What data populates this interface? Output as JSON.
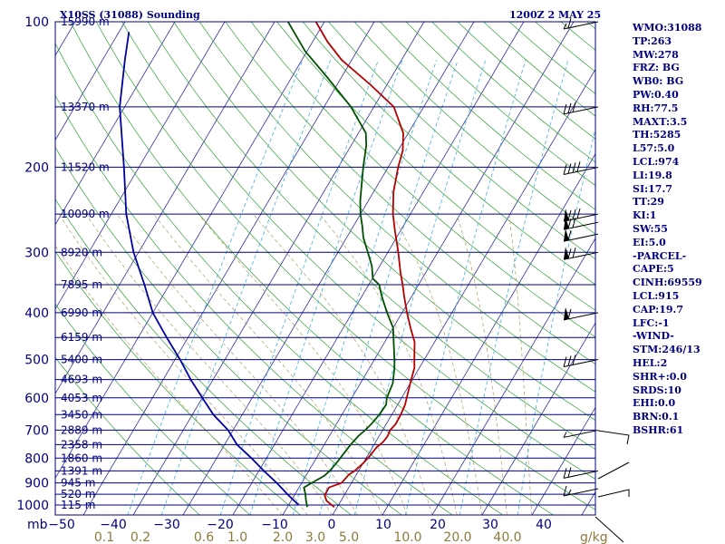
{
  "header": {
    "station_title": "X10SS (31088) Sounding",
    "time_label": "1200Z  2 MAY 25"
  },
  "side_panel": [
    "WMO:31088",
    "TP:263",
    "MW:278",
    "FRZ: BG",
    "WB0: BG",
    "PW:0.40",
    "RH:77.5",
    "MAXT:3.5",
    "TH:5285",
    "L57:5.0",
    "LCL:974",
    "LI:19.8",
    "SI:17.7",
    "TT:29",
    "KI:1",
    "SW:55",
    "EI:5.0",
    "-PARCEL-",
    "CAPE:5",
    "CINH:69559",
    "LCL:915",
    "CAP:19.7",
    "LFC:-1",
    "-WIND-",
    "STM:246/13",
    "HEL:2",
    "SHR+:0.0",
    "SRDS:10",
    "EHI:0.0",
    "BRN:0.1",
    "BSHR:61"
  ],
  "chart_data": {
    "type": "line",
    "pressure_axis": {
      "label": "mb",
      "ticks": [
        100,
        200,
        300,
        400,
        500,
        600,
        700,
        800,
        900,
        1000
      ],
      "range": [
        100,
        1000
      ],
      "scale": "log"
    },
    "temperature_axis": {
      "ticks": [
        -50,
        -40,
        -30,
        -20,
        -10,
        0,
        10,
        20,
        30,
        40
      ],
      "range": [
        -50,
        50
      ],
      "skew_per_decade_cm": "skewed"
    },
    "mixing_ratio_labels": {
      "unit": "g/kg",
      "values": [
        "0.1",
        "0.2",
        "0.6",
        "1.0",
        "2.0",
        "3.0",
        "5.0",
        "10.0",
        "20.0",
        "40.0"
      ]
    },
    "height_labels": [
      {
        "p": 100,
        "text": "15990 m"
      },
      {
        "p": 150,
        "text": "13370 m"
      },
      {
        "p": 200,
        "text": "11520 m"
      },
      {
        "p": 250,
        "text": "10090 m"
      },
      {
        "p": 300,
        "text": "8920 m"
      },
      {
        "p": 350,
        "text": "7895 m"
      },
      {
        "p": 400,
        "text": "6990 m"
      },
      {
        "p": 450,
        "text": "6159 m"
      },
      {
        "p": 500,
        "text": "5400 m"
      },
      {
        "p": 550,
        "text": "4693 m"
      },
      {
        "p": 600,
        "text": "4053 m"
      },
      {
        "p": 650,
        "text": "3450 m"
      },
      {
        "p": 700,
        "text": "2889 m"
      },
      {
        "p": 750,
        "text": "2358 m"
      },
      {
        "p": 800,
        "text": "1860 m"
      },
      {
        "p": 850,
        "text": "1391 m"
      },
      {
        "p": 900,
        "text": "945 m"
      },
      {
        "p": 950,
        "text": "520 m"
      },
      {
        "p": 1000,
        "text": "115 m"
      }
    ],
    "series": [
      {
        "name": "",
        "color": "#b40000",
        "points": [
          [
            1010,
            -0.6
          ],
          [
            980,
            -2.9
          ],
          [
            955,
            -3.9
          ],
          [
            920,
            -4.0
          ],
          [
            900,
            -2.0
          ],
          [
            865,
            -1.5
          ],
          [
            850,
            -0.8
          ],
          [
            820,
            0.0
          ],
          [
            790,
            0.5
          ],
          [
            760,
            0.8
          ],
          [
            740,
            1.5
          ],
          [
            720,
            1.7
          ],
          [
            700,
            1.5
          ],
          [
            680,
            1.9
          ],
          [
            650,
            1.8
          ],
          [
            620,
            1.5
          ],
          [
            600,
            1.0
          ],
          [
            560,
            0.0
          ],
          [
            520,
            -1.0
          ],
          [
            500,
            -2.0
          ],
          [
            460,
            -4.0
          ],
          [
            430,
            -6.5
          ],
          [
            400,
            -9.0
          ],
          [
            370,
            -11.5
          ],
          [
            350,
            -13.2
          ],
          [
            330,
            -15.1
          ],
          [
            300,
            -17.9
          ],
          [
            270,
            -21.2
          ],
          [
            250,
            -23.5
          ],
          [
            225,
            -26.0
          ],
          [
            200,
            -28.0
          ],
          [
            185,
            -29.0
          ],
          [
            170,
            -31.0
          ],
          [
            150,
            -36.0
          ],
          [
            135,
            -43.3
          ],
          [
            120,
            -52.0
          ],
          [
            110,
            -57.0
          ],
          [
            100,
            -61.7
          ]
        ]
      },
      {
        "name": "",
        "color": "#005000",
        "points": [
          [
            1010,
            -6.0
          ],
          [
            980,
            -7.0
          ],
          [
            950,
            -7.9
          ],
          [
            920,
            -9.0
          ],
          [
            900,
            -8.0
          ],
          [
            870,
            -6.3
          ],
          [
            850,
            -5.8
          ],
          [
            820,
            -5.4
          ],
          [
            790,
            -5.1
          ],
          [
            750,
            -4.7
          ],
          [
            720,
            -4.2
          ],
          [
            700,
            -3.5
          ],
          [
            680,
            -3.0
          ],
          [
            650,
            -2.5
          ],
          [
            620,
            -2.3
          ],
          [
            600,
            -3.0
          ],
          [
            560,
            -3.5
          ],
          [
            520,
            -5.0
          ],
          [
            500,
            -6.0
          ],
          [
            460,
            -8.2
          ],
          [
            430,
            -10.0
          ],
          [
            400,
            -13.0
          ],
          [
            370,
            -16.0
          ],
          [
            350,
            -17.9
          ],
          [
            340,
            -19.9
          ],
          [
            320,
            -21.6
          ],
          [
            300,
            -24.0
          ],
          [
            280,
            -26.6
          ],
          [
            265,
            -28.2
          ],
          [
            250,
            -30.0
          ],
          [
            235,
            -31.6
          ],
          [
            220,
            -33.0
          ],
          [
            200,
            -35.0
          ],
          [
            180,
            -37.0
          ],
          [
            170,
            -38.5
          ],
          [
            150,
            -44.6
          ],
          [
            130,
            -53.0
          ],
          [
            115,
            -60.4
          ],
          [
            100,
            -67.3
          ]
        ]
      },
      {
        "name": "",
        "color": "#0000a0",
        "points": [
          [
            1000,
            -8.0
          ],
          [
            950,
            -11.5
          ],
          [
            900,
            -15.0
          ],
          [
            850,
            -19.0
          ],
          [
            800,
            -23.0
          ],
          [
            750,
            -27.5
          ],
          [
            700,
            -31.0
          ],
          [
            650,
            -35.8
          ],
          [
            600,
            -40.0
          ],
          [
            550,
            -44.5
          ],
          [
            500,
            -49.0
          ],
          [
            450,
            -54.3
          ],
          [
            400,
            -60.0
          ],
          [
            350,
            -65.0
          ],
          [
            300,
            -71.0
          ],
          [
            250,
            -77.0
          ],
          [
            200,
            -83.0
          ],
          [
            150,
            -91.0
          ],
          [
            120,
            -95.5
          ],
          [
            105,
            -98.0
          ]
        ]
      }
    ],
    "wind_barbs": [
      {
        "p": 100,
        "barbs": [
          "half",
          "full"
        ],
        "flag": false
      },
      {
        "p": 150,
        "barbs": [
          "full",
          "full",
          "full"
        ],
        "flag": false
      },
      {
        "p": 200,
        "barbs": [
          "full",
          "full",
          "full",
          "full"
        ],
        "flag": false
      },
      {
        "p": 250,
        "barbs": [
          "full",
          "full",
          "full"
        ],
        "flag": true
      },
      {
        "p": 260,
        "barbs": [
          "full",
          "full"
        ],
        "flag": true
      },
      {
        "p": 275,
        "barbs": [
          "full"
        ],
        "flag": true
      },
      {
        "p": 300,
        "barbs": [
          "full",
          "full"
        ],
        "flag": true
      },
      {
        "p": 400,
        "barbs": [
          "full"
        ],
        "flag": true
      },
      {
        "p": 500,
        "barbs": [
          "full",
          "full",
          "full"
        ],
        "flag": false
      },
      {
        "p": 700,
        "barbs": [
          "half"
        ],
        "flag": false
      },
      {
        "p": 850,
        "barbs": [
          "full",
          "full"
        ],
        "flag": false
      },
      {
        "p": 925,
        "barbs": [
          "full",
          "half"
        ],
        "flag": false
      }
    ],
    "grid": true
  }
}
